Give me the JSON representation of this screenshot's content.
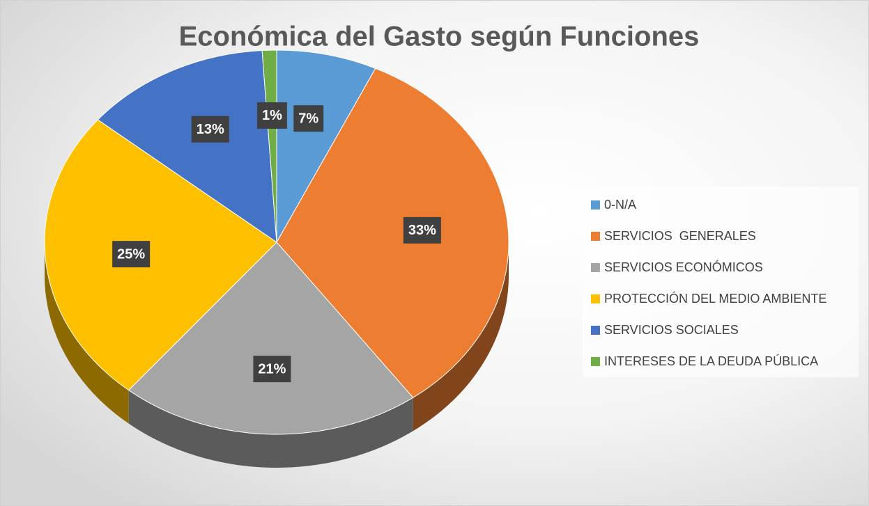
{
  "chart_data": {
    "type": "pie3d",
    "title": "Económica del Gasto según Funciones",
    "categories": [
      "0-N/A",
      "SERVICIOS  GENERALES",
      "SERVICIOS ECONÓMICOS",
      "PROTECCIÓN DEL MEDIO AMBIENTE",
      "SERVICIOS SOCIALES",
      "INTERESES DE LA DEUDA PÚBLICA"
    ],
    "values": [
      7,
      33,
      21,
      25,
      13,
      1
    ],
    "value_labels": [
      "7%",
      "33%",
      "21%",
      "25%",
      "13%",
      "1%"
    ],
    "colors": [
      "#5b9bd5",
      "#ed7d31",
      "#a5a5a5",
      "#ffc000",
      "#4472c4",
      "#70ad47"
    ],
    "legend": "right"
  }
}
